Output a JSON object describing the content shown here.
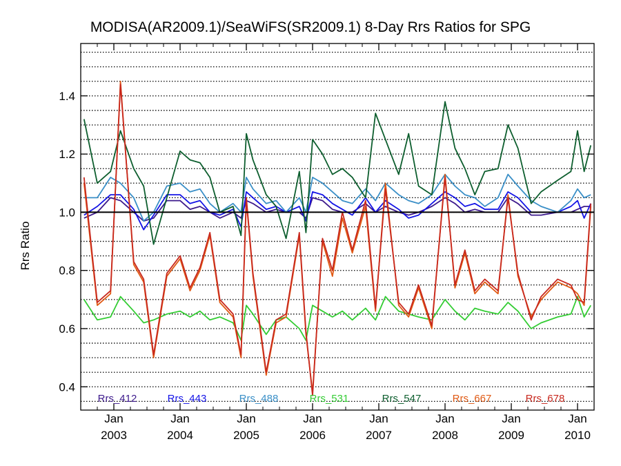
{
  "chart_data": {
    "type": "line",
    "title": "MODISA(AR2009.1)/SeaWiFS(SR2009.1) 8-Day Rrs Ratios for SPG",
    "xlabel": "",
    "ylabel": "Rrs Ratio",
    "xlim": [
      "2002-07",
      "2010-04"
    ],
    "ylim": [
      0.32,
      1.58
    ],
    "yticks": [
      0.4,
      0.6,
      0.8,
      1.0,
      1.2,
      1.4
    ],
    "ytick_labels": [
      "0.4",
      "0.6",
      "0.8",
      "1.0",
      "1.2",
      "1.4"
    ],
    "xticks": [
      {
        "top": "Jan",
        "bottom": "2003",
        "x": 2003.0
      },
      {
        "top": "Jan",
        "bottom": "2004",
        "x": 2004.0
      },
      {
        "top": "Jan",
        "bottom": "2005",
        "x": 2005.0
      },
      {
        "top": "Jan",
        "bottom": "2006",
        "x": 2006.0
      },
      {
        "top": "Jan",
        "bottom": "2007",
        "x": 2007.0
      },
      {
        "top": "Jan",
        "bottom": "2008",
        "x": 2008.0
      },
      {
        "top": "Jan",
        "bottom": "2009",
        "x": 2009.0
      },
      {
        "top": "Jan",
        "bottom": "2010",
        "x": 2010.0
      }
    ],
    "reference_line": 1.0,
    "grid": "horizontal dotted every 0.05",
    "legend_position": "bottom inside plot",
    "series": [
      {
        "name": "Rrs_412",
        "color": "#3d1a8c",
        "x": [
          2002.55,
          2002.75,
          2002.95,
          2003.1,
          2003.3,
          2003.45,
          2003.6,
          2003.8,
          2004.0,
          2004.15,
          2004.3,
          2004.45,
          2004.6,
          2004.8,
          2004.92,
          2005.0,
          2005.1,
          2005.3,
          2005.45,
          2005.6,
          2005.8,
          2005.9,
          2006.0,
          2006.15,
          2006.3,
          2006.45,
          2006.6,
          2006.8,
          2006.95,
          2007.1,
          2007.3,
          2007.45,
          2007.6,
          2007.8,
          2008.0,
          2008.15,
          2008.3,
          2008.45,
          2008.6,
          2008.8,
          2008.95,
          2009.1,
          2009.3,
          2009.45,
          2009.7,
          2009.9,
          2010.0,
          2010.1,
          2010.2
        ],
        "values": [
          0.98,
          1.0,
          1.05,
          1.04,
          1.0,
          0.97,
          0.98,
          1.04,
          1.04,
          1.01,
          1.02,
          1.0,
          0.98,
          1.0,
          0.98,
          1.04,
          1.03,
          1.0,
          1.01,
          1.0,
          1.0,
          0.98,
          1.05,
          1.04,
          1.01,
          1.0,
          1.0,
          1.03,
          1.0,
          1.02,
          1.0,
          0.99,
          1.0,
          1.02,
          1.05,
          1.03,
          1.0,
          1.01,
          1.0,
          1.0,
          1.05,
          1.03,
          0.99,
          0.99,
          1.0,
          1.0,
          1.01,
          1.02,
          1.02
        ]
      },
      {
        "name": "Rrs_443",
        "color": "#1414e6",
        "x": [
          2002.55,
          2002.75,
          2002.95,
          2003.1,
          2003.3,
          2003.45,
          2003.6,
          2003.8,
          2004.0,
          2004.15,
          2004.3,
          2004.45,
          2004.6,
          2004.8,
          2004.92,
          2005.0,
          2005.1,
          2005.3,
          2005.45,
          2005.6,
          2005.8,
          2005.9,
          2006.0,
          2006.15,
          2006.3,
          2006.45,
          2006.6,
          2006.8,
          2006.95,
          2007.1,
          2007.3,
          2007.45,
          2007.6,
          2007.8,
          2008.0,
          2008.15,
          2008.3,
          2008.45,
          2008.6,
          2008.8,
          2008.95,
          2009.1,
          2009.3,
          2009.45,
          2009.7,
          2009.9,
          2010.0,
          2010.1,
          2010.2
        ],
        "values": [
          0.99,
          1.02,
          1.06,
          1.06,
          1.01,
          0.94,
          0.99,
          1.06,
          1.06,
          1.03,
          1.04,
          1.0,
          0.99,
          1.01,
          0.95,
          1.07,
          1.05,
          1.01,
          1.02,
          1.0,
          1.02,
          0.97,
          1.07,
          1.06,
          1.03,
          1.01,
          0.99,
          1.05,
          1.0,
          1.04,
          1.01,
          0.98,
          0.99,
          1.03,
          1.07,
          1.05,
          1.02,
          1.03,
          1.01,
          1.01,
          1.07,
          1.05,
          1.0,
          1.0,
          1.0,
          1.02,
          1.04,
          0.98,
          1.03
        ]
      },
      {
        "name": "Rrs_488",
        "color": "#3a8fc7",
        "x": [
          2002.55,
          2002.75,
          2002.95,
          2003.1,
          2003.3,
          2003.45,
          2003.6,
          2003.8,
          2004.0,
          2004.15,
          2004.3,
          2004.45,
          2004.6,
          2004.8,
          2004.92,
          2005.0,
          2005.1,
          2005.3,
          2005.45,
          2005.6,
          2005.8,
          2005.9,
          2006.0,
          2006.15,
          2006.3,
          2006.45,
          2006.6,
          2006.8,
          2006.95,
          2007.1,
          2007.3,
          2007.45,
          2007.6,
          2007.8,
          2008.0,
          2008.15,
          2008.3,
          2008.45,
          2008.6,
          2008.8,
          2008.95,
          2009.1,
          2009.3,
          2009.45,
          2009.7,
          2009.9,
          2010.0,
          2010.1,
          2010.2
        ],
        "values": [
          1.05,
          1.05,
          1.12,
          1.1,
          1.05,
          0.97,
          1.0,
          1.09,
          1.1,
          1.07,
          1.08,
          1.03,
          1.0,
          1.03,
          1.0,
          1.12,
          1.08,
          1.03,
          1.04,
          1.0,
          1.05,
          1.0,
          1.12,
          1.1,
          1.07,
          1.04,
          1.03,
          1.08,
          1.04,
          1.1,
          1.06,
          1.04,
          1.03,
          1.06,
          1.13,
          1.09,
          1.06,
          1.05,
          1.02,
          1.05,
          1.13,
          1.09,
          1.04,
          1.02,
          1.0,
          1.04,
          1.08,
          1.05,
          1.06
        ]
      },
      {
        "name": "Rrs_531",
        "color": "#33cc33",
        "x": [
          2002.55,
          2002.75,
          2002.95,
          2003.1,
          2003.3,
          2003.45,
          2003.6,
          2003.8,
          2004.0,
          2004.15,
          2004.3,
          2004.45,
          2004.6,
          2004.8,
          2004.92,
          2005.0,
          2005.1,
          2005.3,
          2005.45,
          2005.6,
          2005.8,
          2005.9,
          2006.0,
          2006.15,
          2006.3,
          2006.45,
          2006.6,
          2006.8,
          2006.95,
          2007.1,
          2007.3,
          2007.45,
          2007.6,
          2007.8,
          2008.0,
          2008.15,
          2008.3,
          2008.45,
          2008.6,
          2008.8,
          2008.95,
          2009.1,
          2009.3,
          2009.45,
          2009.7,
          2009.9,
          2010.0,
          2010.1,
          2010.2
        ],
        "values": [
          0.7,
          0.63,
          0.64,
          0.71,
          0.66,
          0.62,
          0.63,
          0.65,
          0.66,
          0.64,
          0.66,
          0.63,
          0.64,
          0.62,
          0.56,
          0.68,
          0.65,
          0.58,
          0.63,
          0.64,
          0.6,
          0.56,
          0.68,
          0.66,
          0.64,
          0.66,
          0.63,
          0.67,
          0.63,
          0.71,
          0.66,
          0.65,
          0.64,
          0.63,
          0.7,
          0.66,
          0.63,
          0.67,
          0.66,
          0.65,
          0.69,
          0.66,
          0.6,
          0.62,
          0.64,
          0.65,
          0.71,
          0.64,
          0.68
        ]
      },
      {
        "name": "Rrs_547",
        "color": "#0d5e2e",
        "x": [
          2002.55,
          2002.75,
          2002.95,
          2003.1,
          2003.3,
          2003.45,
          2003.6,
          2003.8,
          2004.0,
          2004.15,
          2004.3,
          2004.45,
          2004.6,
          2004.8,
          2004.92,
          2005.0,
          2005.1,
          2005.3,
          2005.45,
          2005.6,
          2005.8,
          2005.9,
          2006.0,
          2006.15,
          2006.3,
          2006.45,
          2006.6,
          2006.8,
          2006.95,
          2007.1,
          2007.3,
          2007.45,
          2007.6,
          2007.8,
          2008.0,
          2008.15,
          2008.3,
          2008.45,
          2008.6,
          2008.8,
          2008.95,
          2009.1,
          2009.3,
          2009.45,
          2009.7,
          2009.9,
          2010.0,
          2010.1,
          2010.2
        ],
        "values": [
          1.32,
          1.1,
          1.14,
          1.28,
          1.15,
          1.09,
          0.89,
          1.05,
          1.21,
          1.18,
          1.17,
          1.12,
          1.0,
          1.02,
          0.92,
          1.27,
          1.18,
          1.06,
          1.02,
          0.91,
          1.14,
          0.93,
          1.25,
          1.2,
          1.13,
          1.15,
          1.12,
          1.05,
          1.34,
          1.25,
          1.13,
          1.27,
          1.09,
          1.06,
          1.38,
          1.22,
          1.15,
          1.06,
          1.14,
          1.15,
          1.3,
          1.22,
          1.03,
          1.07,
          1.11,
          1.14,
          1.28,
          1.14,
          1.23
        ]
      },
      {
        "name": "Rrs_667",
        "color": "#e05a14",
        "x": [
          2002.55,
          2002.75,
          2002.95,
          2003.1,
          2003.3,
          2003.45,
          2003.6,
          2003.8,
          2004.0,
          2004.15,
          2004.3,
          2004.45,
          2004.6,
          2004.8,
          2004.92,
          2005.0,
          2005.1,
          2005.3,
          2005.45,
          2005.6,
          2005.8,
          2005.9,
          2006.0,
          2006.15,
          2006.3,
          2006.45,
          2006.6,
          2006.8,
          2006.95,
          2007.1,
          2007.3,
          2007.45,
          2007.6,
          2007.8,
          2008.0,
          2008.15,
          2008.3,
          2008.45,
          2008.6,
          2008.8,
          2008.95,
          2009.1,
          2009.3,
          2009.45,
          2009.7,
          2009.9,
          2010.0,
          2010.1,
          2010.2
        ],
        "values": [
          1.1,
          0.68,
          0.72,
          1.45,
          0.82,
          0.76,
          0.5,
          0.78,
          0.84,
          0.73,
          0.8,
          0.92,
          0.69,
          0.64,
          0.5,
          1.04,
          0.78,
          0.44,
          0.62,
          0.64,
          0.92,
          0.58,
          0.38,
          0.9,
          0.78,
          0.98,
          0.86,
          1.02,
          0.66,
          1.1,
          0.68,
          0.64,
          0.74,
          0.6,
          1.13,
          0.74,
          0.86,
          0.72,
          0.76,
          0.72,
          1.06,
          0.78,
          0.64,
          0.7,
          0.76,
          0.74,
          0.72,
          0.68,
          1.02
        ]
      },
      {
        "name": "Rrs_678",
        "color": "#c8281e",
        "x": [
          2002.55,
          2002.75,
          2002.95,
          2003.1,
          2003.3,
          2003.45,
          2003.6,
          2003.8,
          2004.0,
          2004.15,
          2004.3,
          2004.45,
          2004.6,
          2004.8,
          2004.92,
          2005.0,
          2005.1,
          2005.3,
          2005.45,
          2005.6,
          2005.8,
          2005.9,
          2006.0,
          2006.15,
          2006.3,
          2006.45,
          2006.6,
          2006.8,
          2006.95,
          2007.1,
          2007.3,
          2007.45,
          2007.6,
          2007.8,
          2008.0,
          2008.15,
          2008.3,
          2008.45,
          2008.6,
          2008.8,
          2008.95,
          2009.1,
          2009.3,
          2009.45,
          2009.7,
          2009.9,
          2010.0,
          2010.1,
          2010.2
        ],
        "values": [
          1.12,
          0.69,
          0.73,
          1.44,
          0.83,
          0.77,
          0.51,
          0.79,
          0.85,
          0.74,
          0.81,
          0.93,
          0.7,
          0.65,
          0.51,
          1.05,
          0.79,
          0.45,
          0.63,
          0.65,
          0.93,
          0.59,
          0.37,
          0.91,
          0.8,
          1.0,
          0.87,
          1.04,
          0.67,
          1.08,
          0.69,
          0.65,
          0.75,
          0.61,
          1.12,
          0.75,
          0.87,
          0.73,
          0.77,
          0.73,
          1.05,
          0.79,
          0.63,
          0.71,
          0.77,
          0.75,
          0.7,
          0.69,
          1.03
        ]
      }
    ]
  }
}
